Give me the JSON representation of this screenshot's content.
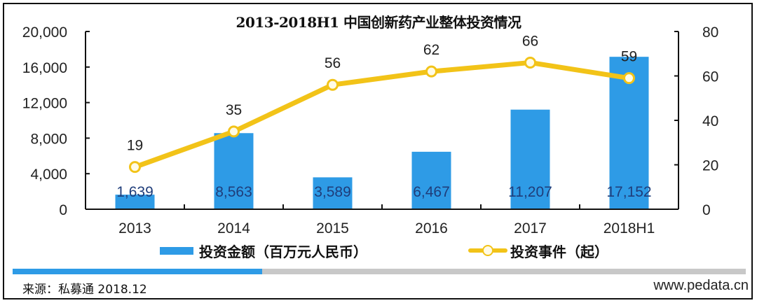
{
  "title": "2013-2018H1 中国创新药产业整体投资情况",
  "legend": {
    "bar_label": "投资金额（百万元人民币）",
    "line_label": "投资事件（起）"
  },
  "colors": {
    "bar": "#2e9be6",
    "line": "#f2c318",
    "bar_label_text": "#1f3d7a"
  },
  "left_axis": {
    "ticks": [
      "0",
      "4,000",
      "8,000",
      "12,000",
      "16,000",
      "20,000"
    ]
  },
  "right_axis": {
    "ticks": [
      "0",
      "20",
      "40",
      "60",
      "80"
    ]
  },
  "categories": [
    "2013",
    "2014",
    "2015",
    "2016",
    "2017",
    "2018H1"
  ],
  "bar_labels": [
    "1,639",
    "8,563",
    "3,589",
    "6,467",
    "11,207",
    "17,152"
  ],
  "line_labels": [
    "19",
    "35",
    "56",
    "62",
    "66",
    "59"
  ],
  "footer": {
    "source": "来源：私募通 2018.12",
    "site": "www.pedata.cn",
    "progress_percent": 34
  },
  "chart_data": {
    "type": "bar",
    "title": "2013-2018H1 中国创新药产业整体投资情况",
    "categories": [
      "2013",
      "2014",
      "2015",
      "2016",
      "2017",
      "2018H1"
    ],
    "series": [
      {
        "name": "投资金额（百万元人民币）",
        "type": "bar",
        "axis": "left",
        "values": [
          1639,
          8563,
          3589,
          6467,
          11207,
          17152
        ]
      },
      {
        "name": "投资事件（起）",
        "type": "line",
        "axis": "right",
        "values": [
          19,
          35,
          56,
          62,
          66,
          59
        ]
      }
    ],
    "xlabel": "",
    "ylabel": "",
    "ylim": [
      0,
      20000
    ],
    "y2lim": [
      0,
      80
    ],
    "yticks": [
      0,
      4000,
      8000,
      12000,
      16000,
      20000
    ],
    "y2ticks": [
      0,
      20,
      40,
      60,
      80
    ],
    "grid": false,
    "legend_position": "bottom"
  }
}
